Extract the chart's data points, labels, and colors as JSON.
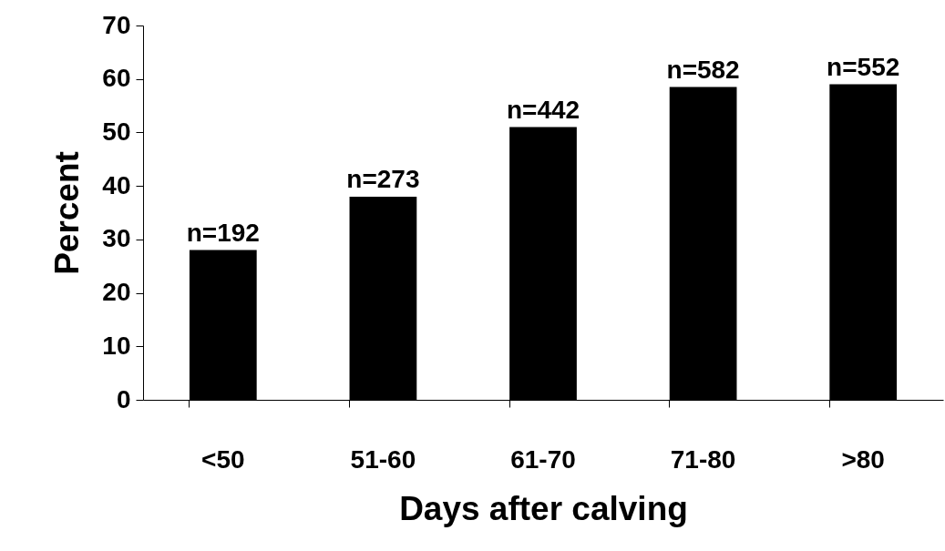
{
  "chart_data": {
    "type": "bar",
    "xlabel": "Days after calving",
    "ylabel": "Percent",
    "categories": [
      "<50",
      "51-60",
      "61-70",
      "71-80",
      ">80"
    ],
    "values": [
      28,
      38,
      51,
      58.5,
      59
    ],
    "annotations": [
      {
        "text": "n=192",
        "x": "<50",
        "y": 28
      },
      {
        "text": "n=273",
        "x": "51-60",
        "y": 38
      },
      {
        "text": "n=442",
        "x": "61-70",
        "y": 51
      },
      {
        "text": "n=582",
        "x": "71-80",
        "y": 58.5
      },
      {
        "text": "n=552",
        "x": ">80",
        "y": 59
      }
    ],
    "color": "#000000",
    "ylim": [
      0,
      70
    ],
    "yticks": [
      0,
      10,
      20,
      30,
      40,
      50,
      60,
      70
    ],
    "grid": false
  }
}
